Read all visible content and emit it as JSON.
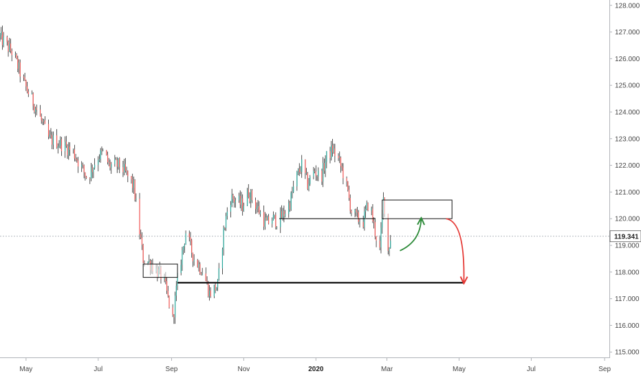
{
  "chart_data": {
    "type": "candlestick",
    "title": "",
    "x_axis": {
      "tick_labels": [
        "May",
        "Jul",
        "Sep",
        "Nov",
        "2020",
        "Mar",
        "May",
        "Jul",
        "Sep"
      ],
      "tick_dates": [
        "2019-05-01",
        "2019-07-01",
        "2019-09-01",
        "2019-11-01",
        "2020-01-01",
        "2020-03-01",
        "2020-05-01",
        "2020-07-01",
        "2020-09-01"
      ],
      "bold_labels": [
        "2020"
      ],
      "range": [
        "2019-04-09",
        "2020-09-05"
      ]
    },
    "y_axis": {
      "position": "right",
      "tick_labels": [
        "115.000",
        "116.000",
        "117.000",
        "118.000",
        "119.000",
        "120.000",
        "121.000",
        "122.000",
        "123.000",
        "124.000",
        "125.000",
        "126.000",
        "127.000",
        "128.000"
      ],
      "range": [
        114.8,
        128.2
      ]
    },
    "current_price": {
      "value": 119.341,
      "label": "119.341"
    },
    "colors": {
      "up": "#26a69a",
      "down": "#ef5350",
      "wick": "#222222",
      "up_arrow": "#2e8b3a",
      "down_arrow": "#e53935",
      "background": "#ffffff"
    },
    "price_path": [
      [
        "2019-04-09",
        126.8
      ],
      [
        "2019-04-20",
        126.2
      ],
      [
        "2019-04-30",
        125.0
      ],
      [
        "2019-05-10",
        124.1
      ],
      [
        "2019-05-20",
        123.0
      ],
      [
        "2019-05-31",
        122.8
      ],
      [
        "2019-06-10",
        122.5
      ],
      [
        "2019-06-22",
        121.5
      ],
      [
        "2019-06-30",
        122.3
      ],
      [
        "2019-07-06",
        122.5
      ],
      [
        "2019-07-10",
        122.0
      ],
      [
        "2019-07-20",
        122.0
      ],
      [
        "2019-07-31",
        121.2
      ],
      [
        "2019-08-08",
        118.5
      ],
      [
        "2019-08-15",
        118.3
      ],
      [
        "2019-08-20",
        118.0
      ],
      [
        "2019-08-25",
        117.8
      ],
      [
        "2019-08-30",
        116.8
      ],
      [
        "2019-09-02",
        116.2
      ],
      [
        "2019-09-06",
        117.7
      ],
      [
        "2019-09-13",
        119.5
      ],
      [
        "2019-09-20",
        118.5
      ],
      [
        "2019-09-28",
        118.0
      ],
      [
        "2019-10-03",
        117.2
      ],
      [
        "2019-10-10",
        117.5
      ],
      [
        "2019-10-15",
        119.5
      ],
      [
        "2019-10-20",
        120.8
      ],
      [
        "2019-10-25",
        120.7
      ],
      [
        "2019-10-31",
        120.5
      ],
      [
        "2019-11-05",
        121.0
      ],
      [
        "2019-11-10",
        120.6
      ],
      [
        "2019-11-20",
        119.8
      ],
      [
        "2019-11-25",
        120.0
      ],
      [
        "2019-11-30",
        119.9
      ],
      [
        "2019-12-05",
        120.2
      ],
      [
        "2019-12-10",
        120.6
      ],
      [
        "2019-12-15",
        121.5
      ],
      [
        "2019-12-20",
        122.0
      ],
      [
        "2019-12-25",
        121.3
      ],
      [
        "2019-12-31",
        121.8
      ],
      [
        "2020-01-05",
        121.5
      ],
      [
        "2020-01-10",
        122.3
      ],
      [
        "2020-01-15",
        122.6
      ],
      [
        "2020-01-20",
        122.2
      ],
      [
        "2020-01-25",
        121.6
      ],
      [
        "2020-01-31",
        120.3
      ],
      [
        "2020-02-05",
        120.0
      ],
      [
        "2020-02-10",
        119.9
      ],
      [
        "2020-02-15",
        120.7
      ],
      [
        "2020-02-20",
        119.5
      ],
      [
        "2020-02-24",
        118.8
      ],
      [
        "2020-02-27",
        120.7
      ],
      [
        "2020-02-29",
        120.2
      ],
      [
        "2020-03-02",
        118.8
      ],
      [
        "2020-03-04",
        119.3
      ]
    ],
    "annotations": [
      {
        "type": "box",
        "x": [
          "2019-08-08",
          "2019-09-06"
        ],
        "y": [
          117.8,
          118.3
        ]
      },
      {
        "type": "line",
        "x": [
          "2019-09-06",
          "2020-05-05"
        ],
        "y": 117.6,
        "weight": "thick"
      },
      {
        "type": "line",
        "x": [
          "2019-12-01",
          "2020-02-20"
        ],
        "y": 120.0
      },
      {
        "type": "box",
        "x": [
          "2020-02-26",
          "2020-04-25"
        ],
        "y": [
          120.0,
          120.7
        ]
      },
      {
        "type": "arrow",
        "color": "up_arrow",
        "from": [
          "2020-03-12",
          118.8
        ],
        "to": [
          "2020-03-30",
          120.0
        ]
      },
      {
        "type": "arrow",
        "color": "down_arrow",
        "from": [
          "2020-04-20",
          120.0
        ],
        "to": [
          "2020-05-05",
          117.6
        ]
      }
    ],
    "grid": false,
    "legend": "none"
  }
}
